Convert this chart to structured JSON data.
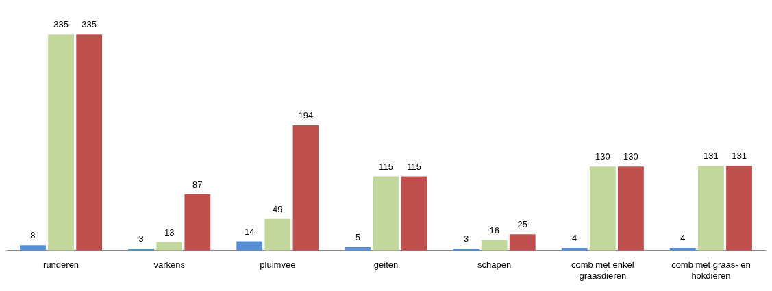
{
  "chart_data": {
    "type": "bar",
    "categories": [
      "runderen",
      "varkens",
      "pluimvee",
      "geiten",
      "schapen",
      "comb met enkel graasdieren",
      "comb met graas- en hokdieren"
    ],
    "series": [
      {
        "color": "#558ed5",
        "values": [
          8,
          3,
          14,
          5,
          3,
          4,
          4
        ]
      },
      {
        "color": "#c3d69b",
        "values": [
          335,
          13,
          49,
          115,
          16,
          130,
          131
        ]
      },
      {
        "color": "#c0504d",
        "values": [
          335,
          87,
          194,
          115,
          25,
          130,
          131
        ]
      }
    ],
    "data_labels": true,
    "grid": false,
    "legend": false
  }
}
